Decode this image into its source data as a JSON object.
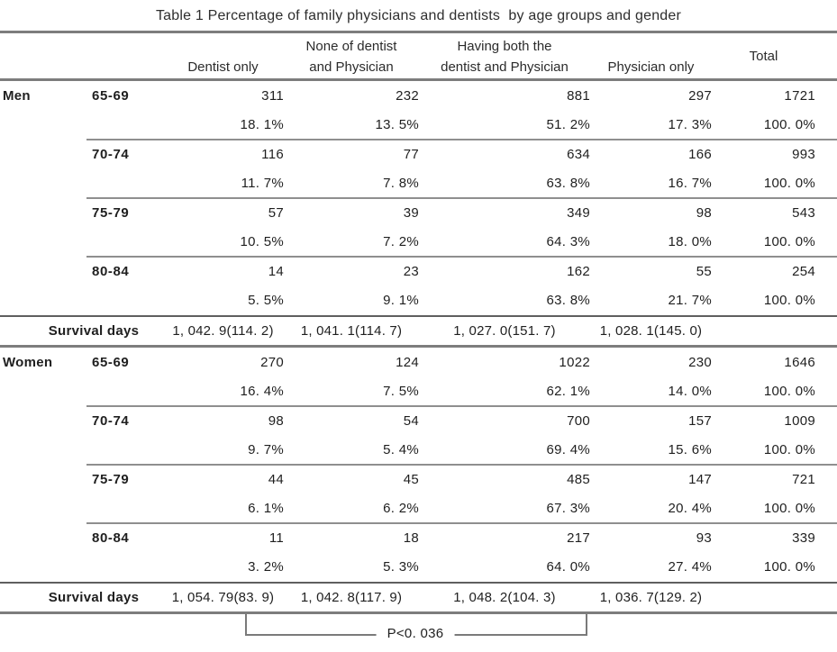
{
  "chart_data": {
    "type": "table",
    "title": "Table 1 Percentage of family physicians and dentists  by age groups and gender",
    "columns": [
      "Dentist only",
      "None of dentist and Physician",
      "Having both the dentist and Physician",
      "Physician only",
      "Total"
    ],
    "header": {
      "col1": {
        "line1": "",
        "line2": "Dentist only"
      },
      "col2": {
        "line1": "None of dentist",
        "line2": "and Physician"
      },
      "col3": {
        "line1": "Having both the",
        "line2": "dentist and Physician"
      },
      "col4": {
        "line1": "",
        "line2": "Physician only"
      },
      "col5": {
        "label": "Total"
      }
    },
    "sections": [
      {
        "gender": "Men",
        "rows": [
          {
            "age": "65-69",
            "counts": [
              "311",
              "232",
              "881",
              "297",
              "1721"
            ],
            "percents": [
              "18. 1%",
              "13. 5%",
              "51. 2%",
              "17. 3%",
              "100. 0%"
            ]
          },
          {
            "age": "70-74",
            "counts": [
              "116",
              "77",
              "634",
              "166",
              "993"
            ],
            "percents": [
              "11. 7%",
              "7. 8%",
              "63. 8%",
              "16. 7%",
              "100. 0%"
            ]
          },
          {
            "age": "75-79",
            "counts": [
              "57",
              "39",
              "349",
              "98",
              "543"
            ],
            "percents": [
              "10. 5%",
              "7. 2%",
              "64. 3%",
              "18. 0%",
              "100. 0%"
            ]
          },
          {
            "age": "80-84",
            "counts": [
              "14",
              "23",
              "162",
              "55",
              "254"
            ],
            "percents": [
              "5. 5%",
              "9. 1%",
              "63. 8%",
              "21. 7%",
              "100. 0%"
            ]
          }
        ],
        "survival_label": "Survival days",
        "survival_values": [
          "1, 042. 9(114. 2)",
          "1, 041. 1(114. 7)",
          "1, 027. 0(151. 7)",
          "1, 028. 1(145. 0)"
        ]
      },
      {
        "gender": "Women",
        "rows": [
          {
            "age": "65-69",
            "counts": [
              "270",
              "124",
              "1022",
              "230",
              "1646"
            ],
            "percents": [
              "16. 4%",
              "7. 5%",
              "62. 1%",
              "14. 0%",
              "100. 0%"
            ]
          },
          {
            "age": "70-74",
            "counts": [
              "98",
              "54",
              "700",
              "157",
              "1009"
            ],
            "percents": [
              "9. 7%",
              "5. 4%",
              "69. 4%",
              "15. 6%",
              "100. 0%"
            ]
          },
          {
            "age": "75-79",
            "counts": [
              "44",
              "45",
              "485",
              "147",
              "721"
            ],
            "percents": [
              "6. 1%",
              "6. 2%",
              "67. 3%",
              "20. 4%",
              "100. 0%"
            ]
          },
          {
            "age": "80-84",
            "counts": [
              "11",
              "18",
              "217",
              "93",
              "339"
            ],
            "percents": [
              "3. 2%",
              "5. 3%",
              "64. 0%",
              "27. 4%",
              "100. 0%"
            ]
          }
        ],
        "survival_label": "Survival days",
        "survival_values": [
          "1, 054. 79(83. 9)",
          "1, 042. 8(117. 9)",
          "1, 048. 2(104. 3)",
          "1, 036. 7(129. 2)"
        ]
      }
    ],
    "footnote": {
      "p_value": "P<0. 036"
    },
    "colors": {
      "text": "#1f1f1f",
      "rule_gray": "#7d7d7d",
      "rule_thin": "#8f8f8f",
      "rule_dark": "#5f5f5f"
    }
  }
}
